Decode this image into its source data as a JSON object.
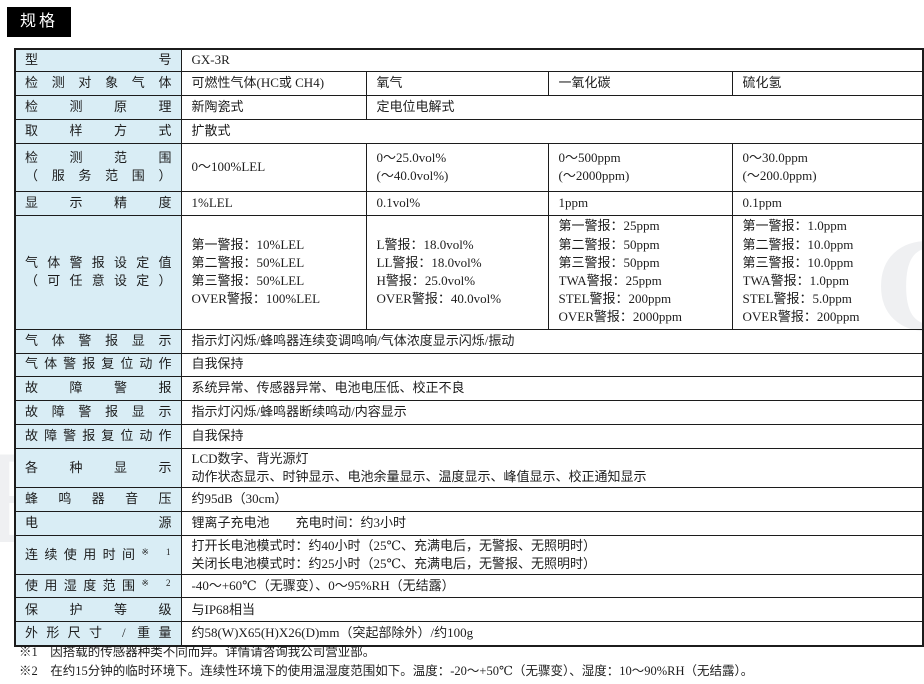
{
  "page_title": "规格",
  "watermark": {
    "left": "R",
    "right": "C"
  },
  "table": {
    "rows": [
      {
        "label_lines": [
          "型号"
        ],
        "cells": [
          {
            "span": 4,
            "lines": [
              "GX-3R"
            ]
          }
        ]
      },
      {
        "label_lines": [
          "检测对象气体"
        ],
        "cells": [
          {
            "span": 1,
            "lines": [
              "可燃性气体(HC或 CH4)"
            ]
          },
          {
            "span": 1,
            "lines": [
              "氧气"
            ]
          },
          {
            "span": 1,
            "lines": [
              "一氧化碳"
            ]
          },
          {
            "span": 1,
            "lines": [
              "硫化氢"
            ]
          }
        ]
      },
      {
        "label_lines": [
          "检测原理"
        ],
        "cells": [
          {
            "span": 1,
            "lines": [
              "新陶瓷式"
            ]
          },
          {
            "span": 3,
            "lines": [
              "定电位电解式"
            ]
          }
        ]
      },
      {
        "label_lines": [
          "取样方式"
        ],
        "cells": [
          {
            "span": 4,
            "lines": [
              "扩散式"
            ]
          }
        ]
      },
      {
        "label_lines": [
          "检测范围",
          "（服务范围）"
        ],
        "cells": [
          {
            "span": 1,
            "lines": [
              "0～100%LEL"
            ]
          },
          {
            "span": 1,
            "lines": [
              "0～25.0vol%",
              "(～40.0vol%)"
            ]
          },
          {
            "span": 1,
            "lines": [
              "0～500ppm",
              "(～2000ppm)"
            ]
          },
          {
            "span": 1,
            "lines": [
              "0～30.0ppm",
              "(～200.0ppm)"
            ]
          }
        ]
      },
      {
        "label_lines": [
          "显示精度"
        ],
        "cells": [
          {
            "span": 1,
            "lines": [
              "1%LEL"
            ]
          },
          {
            "span": 1,
            "lines": [
              "0.1vol%"
            ]
          },
          {
            "span": 1,
            "lines": [
              "1ppm"
            ]
          },
          {
            "span": 1,
            "lines": [
              "0.1ppm"
            ]
          }
        ]
      },
      {
        "label_lines": [
          "气体警报设定值",
          "（可任意设定）"
        ],
        "cells": [
          {
            "span": 1,
            "lines": [
              "第一警报：10%LEL",
              "第二警报：50%LEL",
              "第三警报：50%LEL",
              "OVER警报：100%LEL"
            ]
          },
          {
            "span": 1,
            "lines": [
              "L警报：18.0vol%",
              "LL警报：18.0vol%",
              "H警报：25.0vol%",
              "OVER警报：40.0vol%"
            ]
          },
          {
            "span": 1,
            "lines": [
              "第一警报：25ppm",
              "第二警报：50ppm",
              "第三警报：50ppm",
              "TWA警报：25ppm",
              "STEL警报：200ppm",
              "OVER警报：2000ppm"
            ]
          },
          {
            "span": 1,
            "lines": [
              "第一警报：1.0ppm",
              "第二警报：10.0ppm",
              "第三警报：10.0ppm",
              "TWA警报：1.0ppm",
              "STEL警报：5.0ppm",
              "OVER警报：200ppm"
            ]
          }
        ]
      },
      {
        "label_lines": [
          "气体警报显示"
        ],
        "cells": [
          {
            "span": 4,
            "lines": [
              "指示灯闪烁/蜂鸣器连续变调鸣响/气体浓度显示闪烁/振动"
            ]
          }
        ]
      },
      {
        "label_lines": [
          "气体警报复位动作"
        ],
        "cells": [
          {
            "span": 4,
            "lines": [
              "自我保持"
            ]
          }
        ]
      },
      {
        "label_lines": [
          "故障警报"
        ],
        "cells": [
          {
            "span": 4,
            "lines": [
              "系统异常、传感器异常、电池电压低、校正不良"
            ]
          }
        ]
      },
      {
        "label_lines": [
          "故障警报显示"
        ],
        "cells": [
          {
            "span": 4,
            "lines": [
              "指示灯闪烁/蜂鸣器断续鸣动/内容显示"
            ]
          }
        ]
      },
      {
        "label_lines": [
          "故障警报复位动作"
        ],
        "cells": [
          {
            "span": 4,
            "lines": [
              "自我保持"
            ]
          }
        ]
      },
      {
        "label_lines": [
          "各种显示"
        ],
        "cells": [
          {
            "span": 4,
            "lines": [
              "LCD数字、背光源灯",
              "动作状态显示、时钟显示、电池余量显示、温度显示、峰值显示、校正通知显示"
            ]
          }
        ]
      },
      {
        "label_lines": [
          "蜂鸣器音压"
        ],
        "cells": [
          {
            "span": 4,
            "lines": [
              "约95dB（30cm）"
            ]
          }
        ]
      },
      {
        "label_lines": [
          "电源"
        ],
        "cells": [
          {
            "span": 4,
            "lines": [
              "锂离子充电池　　充电时间：约3小时"
            ]
          }
        ]
      },
      {
        "label_lines": [
          "连续使用时间"
        ],
        "note": "※ 1",
        "cells": [
          {
            "span": 4,
            "lines": [
              "打开长电池模式时：约40小时（25℃、充满电后，无警报、无照明时）",
              "关闭长电池模式时：约25小时（25℃、充满电后，无警报、无照明时）"
            ]
          }
        ]
      },
      {
        "label_lines": [
          "使用湿度范围"
        ],
        "note": "※ 2",
        "cells": [
          {
            "span": 4,
            "lines": [
              "-40～+60℃（无骤变）、0～95%RH（无结露）"
            ]
          }
        ]
      },
      {
        "label_lines": [
          "保护等级"
        ],
        "cells": [
          {
            "span": 4,
            "lines": [
              "与IP68相当"
            ]
          }
        ]
      },
      {
        "label_lines": [
          "外形尺寸 / 重量"
        ],
        "cells": [
          {
            "span": 4,
            "lines": [
              "约58(W)X65(H)X26(D)mm（突起部除外）/约100g"
            ]
          }
        ]
      }
    ]
  },
  "footnotes": [
    "※1　因搭载的传感器种类不同而异。详情请咨询我公司营业部。",
    "※2　在约15分钟的临时环境下。连续性环境下的使用温湿度范围如下。温度：-20～+50℃（无骤变）、湿度：10～90%RH（无结露）。"
  ]
}
